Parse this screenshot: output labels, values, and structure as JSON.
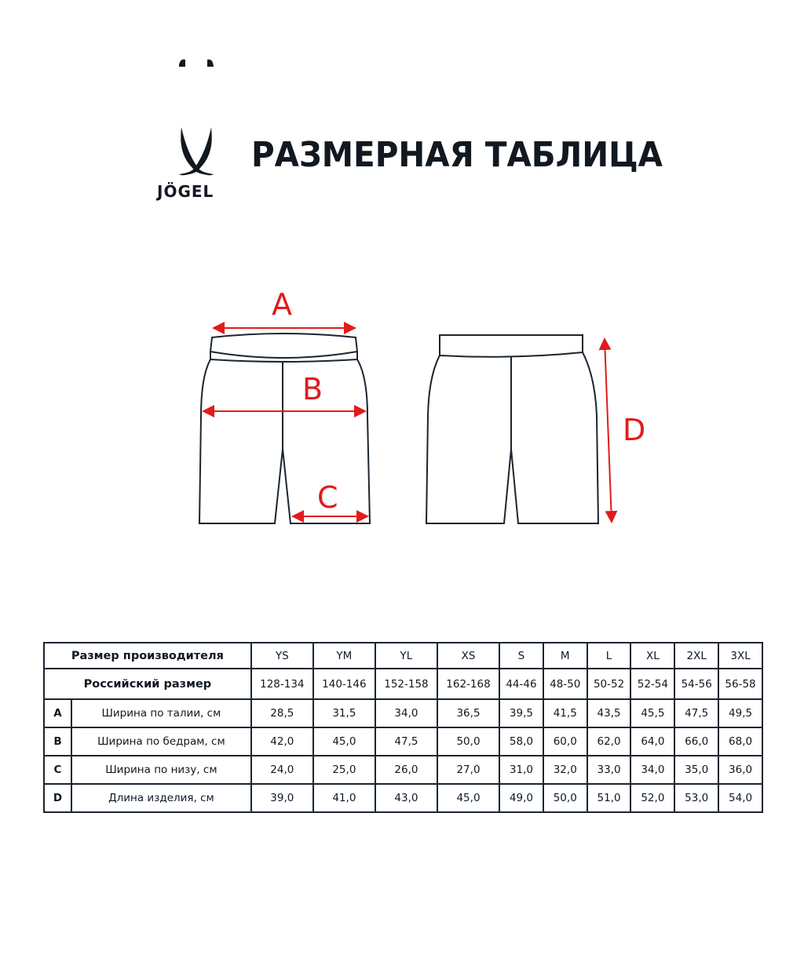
{
  "brand": {
    "name": "JÖGEL"
  },
  "title": "РАЗМЕРНАЯ ТАБЛИЦА",
  "diagram": {
    "labels": {
      "a": "A",
      "b": "B",
      "c": "C",
      "d": "D"
    },
    "arrow_color": "#e21b1b"
  },
  "table": {
    "header_manufacturer": "Размер производителя",
    "header_russian": "Российский размер",
    "sizes": [
      "YS",
      "YM",
      "YL",
      "XS",
      "S",
      "M",
      "L",
      "XL",
      "2XL",
      "3XL"
    ],
    "russian_sizes": [
      "128-134",
      "140-146",
      "152-158",
      "162-168",
      "44-46",
      "48-50",
      "50-52",
      "52-54",
      "54-56",
      "56-58"
    ],
    "rows": [
      {
        "letter": "A",
        "label": "Ширина по талии, см",
        "values": [
          "28,5",
          "31,5",
          "34,0",
          "36,5",
          "39,5",
          "41,5",
          "43,5",
          "45,5",
          "47,5",
          "49,5"
        ]
      },
      {
        "letter": "B",
        "label": "Ширина по бедрам, см",
        "values": [
          "42,0",
          "45,0",
          "47,5",
          "50,0",
          "58,0",
          "60,0",
          "62,0",
          "64,0",
          "66,0",
          "68,0"
        ]
      },
      {
        "letter": "C",
        "label": "Ширина по низу, см",
        "values": [
          "24,0",
          "25,0",
          "26,0",
          "27,0",
          "31,0",
          "32,0",
          "33,0",
          "34,0",
          "35,0",
          "36,0"
        ]
      },
      {
        "letter": "D",
        "label": "Длина изделия, см",
        "values": [
          "39,0",
          "41,0",
          "43,0",
          "45,0",
          "49,0",
          "50,0",
          "51,0",
          "52,0",
          "53,0",
          "54,0"
        ]
      }
    ]
  }
}
